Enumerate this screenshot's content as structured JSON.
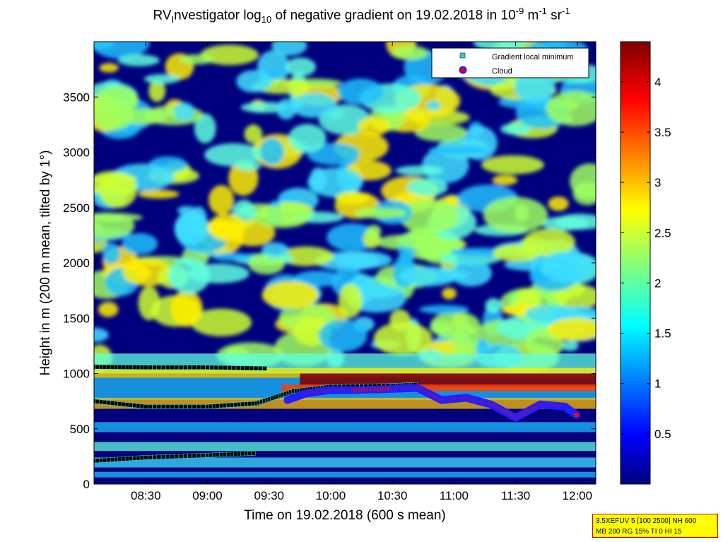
{
  "chart_data": {
    "type": "heatmap",
    "title": {
      "prefix": "RV",
      "sub1": "I",
      "part2": "nvestigator log",
      "sub2": "10",
      "part3": " of negative gradient on 19.02.2018 in 10",
      "sup1": "-9",
      "part4": " m",
      "sup2": "-1",
      "part5": " sr",
      "sup3": "-1"
    },
    "xlabel": "Time on 19.02.2018 (600 s mean)",
    "ylabel": "Height in m (200 m mean, tilted by 1°)",
    "x_ticks": [
      "08:30",
      "09:00",
      "09:30",
      "10:00",
      "10:30",
      "11:00",
      "11:30",
      "12:00"
    ],
    "x_tick_hours": [
      8.5,
      9.0,
      9.5,
      10.0,
      10.5,
      11.0,
      11.5,
      12.0
    ],
    "xlim_hours": [
      8.08,
      12.15
    ],
    "y_ticks": [
      0,
      500,
      1000,
      1500,
      2000,
      2500,
      3000,
      3500
    ],
    "ylim": [
      0,
      4000
    ],
    "colorbar": {
      "ticks": [
        0.5,
        1,
        1.5,
        2,
        2.5,
        3,
        3.5,
        4
      ],
      "range": [
        0,
        4.4
      ],
      "colormap": "jet"
    },
    "legend": {
      "placement": "top-right",
      "entries": [
        {
          "label": "Gradient local minimum",
          "marker": "square",
          "color": "#33cccc"
        },
        {
          "label": "Cloud",
          "marker": "circle",
          "color": "#ff0000"
        }
      ]
    },
    "series": [
      {
        "name": "Gradient local minimum",
        "layers": [
          {
            "x_hours": [
              8.08,
              8.5,
              9.0,
              9.5
            ],
            "y": [
              1060,
              1055,
              1055,
              1045
            ]
          },
          {
            "x_hours": [
              8.08,
              8.5,
              9.0,
              9.4,
              9.7,
              10.0,
              10.5,
              10.7
            ],
            "y": [
              750,
              700,
              700,
              730,
              840,
              880,
              890,
              900
            ]
          },
          {
            "x_hours": [
              8.08,
              8.5,
              9.0,
              9.4
            ],
            "y": [
              210,
              240,
              260,
              280
            ]
          }
        ]
      },
      {
        "name": "Cloud",
        "layers": [
          {
            "x_hours": [
              9.65,
              9.8,
              10.0,
              10.2,
              10.5,
              10.7,
              10.9,
              11.1,
              11.3,
              11.5,
              11.7,
              11.9,
              12.0
            ],
            "y": [
              760,
              820,
              850,
              850,
              860,
              870,
              760,
              780,
              720,
              600,
              720,
              700,
              620
            ]
          }
        ]
      }
    ]
  },
  "info_box": {
    "line1": "3.5XEFUV 5 [100 2500] NH 600",
    "line2": "MB 200 RG 15% TI 0 HI 15"
  },
  "colors": {
    "background_field": "#00007f",
    "low": "#1fbfff",
    "mid": "#cfff2f",
    "high": "#ff3f00",
    "max": "#7f0000"
  }
}
